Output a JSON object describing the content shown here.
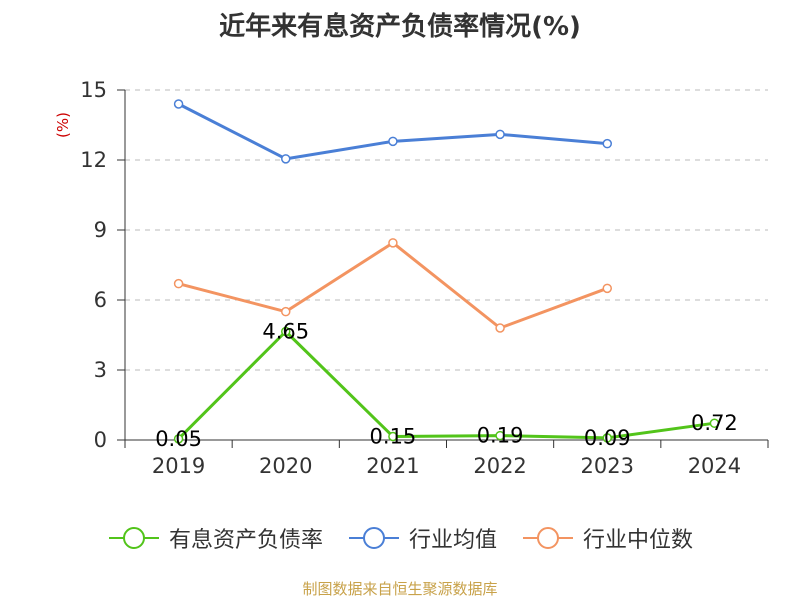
{
  "chart_data": {
    "type": "line",
    "title": "近年来有息资产负债率情况(%)",
    "ylabel": "(%)",
    "xlabel": "",
    "categories": [
      "2019",
      "2020",
      "2021",
      "2022",
      "2023",
      "2024"
    ],
    "ylim": [
      0,
      15
    ],
    "yticks": [
      0,
      3,
      6,
      9,
      12,
      15
    ],
    "grid": true,
    "legend_position": "bottom",
    "series": [
      {
        "name": "有息资产负债率",
        "color": "#52c41a",
        "values": [
          0.05,
          4.65,
          0.15,
          0.19,
          0.09,
          0.72
        ],
        "labels": [
          "0.05",
          "4.65",
          "0.15",
          "0.19",
          "0.09",
          "0.72"
        ]
      },
      {
        "name": "行业均值",
        "color": "#4a7fd6",
        "values": [
          14.4,
          12.05,
          12.8,
          13.1,
          12.7,
          null
        ]
      },
      {
        "name": "行业中位数",
        "color": "#f39461",
        "values": [
          6.7,
          5.5,
          8.45,
          4.8,
          6.5,
          null
        ]
      }
    ],
    "source": "制图数据来自恒生聚源数据库",
    "unit_color": "#cc0000"
  }
}
